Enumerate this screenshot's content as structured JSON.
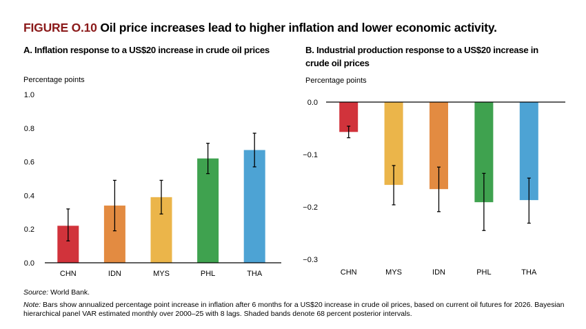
{
  "figure": {
    "label": "FIGURE O.10",
    "title": "Oil price increases lead to higher inflation and lower economic activity."
  },
  "chart_data": [
    {
      "type": "bar",
      "panel": "A",
      "title": "A. Inflation response to a US$20 increase in crude oil prices",
      "ylabel": "Percentage points",
      "categories": [
        "CHN",
        "IDN",
        "MYS",
        "PHL",
        "THA"
      ],
      "values": [
        0.22,
        0.34,
        0.39,
        0.62,
        0.67
      ],
      "error_low": [
        0.13,
        0.19,
        0.29,
        0.53,
        0.57
      ],
      "error_high": [
        0.32,
        0.49,
        0.49,
        0.71,
        0.77
      ],
      "colors": [
        "#d1333b",
        "#e38b41",
        "#ebb54a",
        "#3fa24f",
        "#4da3d4"
      ],
      "ylim": [
        0,
        1.0
      ],
      "yticks": [
        0.0,
        0.2,
        0.4,
        0.6,
        0.8,
        1.0
      ],
      "ytick_labels": [
        "0.0",
        "0.2",
        "0.4",
        "0.6",
        "0.8",
        "1.0"
      ]
    },
    {
      "type": "bar",
      "panel": "B",
      "title": "B. Industrial production response to a US$20 increase in crude oil prices",
      "ylabel": "Percentage points",
      "categories": [
        "CHN",
        "MYS",
        "IDN",
        "PHL",
        "THA"
      ],
      "values": [
        -0.057,
        -0.158,
        -0.166,
        -0.191,
        -0.187
      ],
      "error_low": [
        -0.068,
        -0.196,
        -0.209,
        -0.245,
        -0.231
      ],
      "error_high": [
        -0.046,
        -0.121,
        -0.124,
        -0.136,
        -0.145
      ],
      "colors": [
        "#d1333b",
        "#ebb54a",
        "#e38b41",
        "#3fa24f",
        "#4da3d4"
      ],
      "ylim": [
        -0.3,
        0.0
      ],
      "yticks": [
        0.0,
        -0.1,
        -0.2,
        -0.3
      ],
      "ytick_labels": [
        "0.0",
        "−0.1",
        "−0.2",
        "−0.3"
      ]
    }
  ],
  "source": {
    "label": "Source:",
    "text": " World Bank."
  },
  "note": {
    "label": "Note:",
    "text": " Bars show annualized percentage point increase in inflation after 6 months for a US$20 increase in crude oil prices, based on current oil futures for 2026. Bayesian hierarchical panel VAR estimated monthly over 2000–25 with 8 lags. Shaded bands denote 68 percent posterior intervals."
  }
}
